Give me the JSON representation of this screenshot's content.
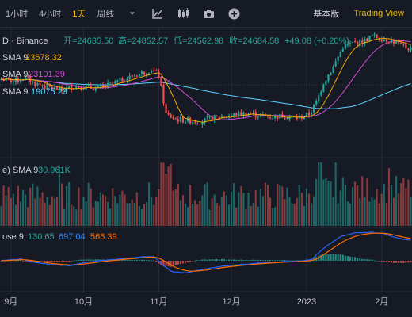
{
  "toolbar": {
    "intervals": [
      "1小时",
      "4小时",
      "1天",
      "周线"
    ],
    "active_interval": "1天",
    "view_basic": "基本版",
    "view_tradingview": "Trading View"
  },
  "legend": {
    "symbol": "D · Binance",
    "open_label": "开=24635.50",
    "high_label": "高=24852.57",
    "low_label": "低=24562.98",
    "close_label": "收=24684.58",
    "change": "+49.08 (+0.20%)",
    "ma1_name": "SMA 9",
    "ma1_value": "23678.32",
    "ma2_name": "SMA 9",
    "ma2_value": "23101.39",
    "ma3_name": "SMA 9",
    "ma3_value": "19075.23",
    "vol_name": "e) SMA 9",
    "vol_value": "30.961K",
    "macd_name": "ose 9",
    "macd_hist": "130.65",
    "macd_line": "697.04",
    "macd_signal": "566.39"
  },
  "colors": {
    "up": "#26a69a",
    "down": "#ef5350",
    "ma1": "#f7a600",
    "ma2": "#d54fd6",
    "ma3": "#5dd3ff",
    "macd": "#2962ff",
    "signal": "#ff6d00",
    "grid": "#262a35",
    "text": "#b2b5be"
  },
  "chart_data": {
    "type": "candlestick",
    "x_ticks": [
      "9月",
      "10月",
      "11月",
      "12月",
      "2023",
      "2月"
    ],
    "x_tick_days": [
      4,
      34,
      65,
      95,
      126,
      157
    ],
    "price_points": [
      [
        0,
        20000
      ],
      [
        5,
        19800
      ],
      [
        10,
        20100
      ],
      [
        14,
        19600
      ],
      [
        20,
        19300
      ],
      [
        25,
        19000
      ],
      [
        30,
        19400
      ],
      [
        35,
        19300
      ],
      [
        40,
        19200
      ],
      [
        45,
        19500
      ],
      [
        50,
        19900
      ],
      [
        55,
        20300
      ],
      [
        60,
        20600
      ],
      [
        62,
        20800
      ],
      [
        65,
        20300
      ],
      [
        68,
        17000
      ],
      [
        72,
        16600
      ],
      [
        77,
        16500
      ],
      [
        82,
        16400
      ],
      [
        87,
        16700
      ],
      [
        92,
        16800
      ],
      [
        97,
        17000
      ],
      [
        102,
        17100
      ],
      [
        107,
        16900
      ],
      [
        112,
        16800
      ],
      [
        117,
        16900
      ],
      [
        122,
        16700
      ],
      [
        127,
        17000
      ],
      [
        130,
        18000
      ],
      [
        133,
        19700
      ],
      [
        137,
        21000
      ],
      [
        141,
        22700
      ],
      [
        145,
        23000
      ],
      [
        149,
        23100
      ],
      [
        153,
        23600
      ],
      [
        157,
        23400
      ],
      [
        161,
        23200
      ],
      [
        165,
        22800
      ],
      [
        169,
        22500
      ]
    ],
    "volume_spike_days": [
      24,
      66,
      67,
      68,
      69,
      70,
      131,
      132,
      138,
      160
    ],
    "macd_points": [
      [
        0,
        0
      ],
      [
        8,
        60
      ],
      [
        14,
        -60
      ],
      [
        20,
        -130
      ],
      [
        28,
        -170
      ],
      [
        36,
        -40
      ],
      [
        44,
        30
      ],
      [
        52,
        90
      ],
      [
        58,
        130
      ],
      [
        63,
        140
      ],
      [
        66,
        -100
      ],
      [
        70,
        -360
      ],
      [
        76,
        -420
      ],
      [
        84,
        -280
      ],
      [
        92,
        -180
      ],
      [
        100,
        -120
      ],
      [
        108,
        -70
      ],
      [
        116,
        -30
      ],
      [
        124,
        0
      ],
      [
        128,
        40
      ],
      [
        132,
        350
      ],
      [
        136,
        600
      ],
      [
        140,
        820
      ],
      [
        146,
        950
      ],
      [
        152,
        980
      ],
      [
        158,
        920
      ],
      [
        164,
        760
      ],
      [
        169,
        700
      ]
    ]
  }
}
